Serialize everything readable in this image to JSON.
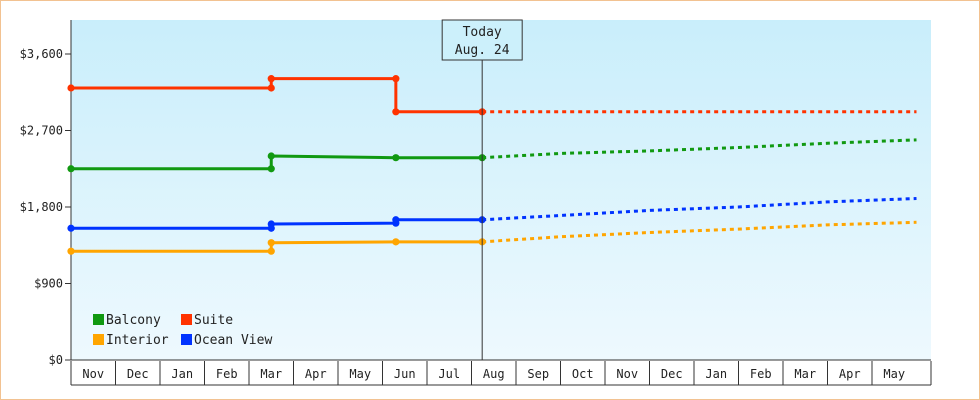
{
  "chart_data": {
    "type": "line",
    "title": "",
    "xlabel": "",
    "ylabel": "",
    "ylim": [
      0,
      4000
    ],
    "y_ticks": [
      {
        "value": 0,
        "label": "$0"
      },
      {
        "value": 900,
        "label": "$900"
      },
      {
        "value": 1800,
        "label": "$1,800"
      },
      {
        "value": 2700,
        "label": "$2,700"
      },
      {
        "value": 3600,
        "label": "$3,600"
      }
    ],
    "x_months": [
      "Nov",
      "Dec",
      "Jan",
      "Feb",
      "Mar",
      "Apr",
      "May",
      "Jun",
      "Jul",
      "Aug",
      "Sep",
      "Oct",
      "Nov",
      "Dec",
      "Jan",
      "Feb",
      "Mar",
      "Apr",
      "May"
    ],
    "today_marker": {
      "line1": "Today",
      "line2": "Aug. 24",
      "x": 9.24
    },
    "legend": {
      "placement": "bottom-left"
    },
    "grid": false,
    "background_gradient": [
      "#c9eefb",
      "#eef9fe"
    ],
    "series": [
      {
        "name": "Balcony",
        "color": "#119911",
        "history": [
          [
            0,
            2250
          ],
          [
            4.5,
            2250
          ],
          [
            4.5,
            2400
          ],
          [
            7.3,
            2380
          ],
          [
            9.24,
            2380
          ]
        ],
        "forecast": [
          [
            9.24,
            2380
          ],
          [
            11,
            2430
          ],
          [
            13,
            2460
          ],
          [
            15,
            2500
          ],
          [
            17,
            2550
          ],
          [
            19.0,
            2590
          ]
        ]
      },
      {
        "name": "Suite",
        "color": "#ff3300",
        "history": [
          [
            0,
            3200
          ],
          [
            4.5,
            3200
          ],
          [
            4.5,
            3310
          ],
          [
            7.3,
            3310
          ],
          [
            7.3,
            2920
          ],
          [
            9.24,
            2920
          ]
        ],
        "forecast": [
          [
            9.24,
            2920
          ],
          [
            19.0,
            2920
          ]
        ]
      },
      {
        "name": "Interior",
        "color": "#ffa500",
        "history": [
          [
            0,
            1280
          ],
          [
            4.5,
            1280
          ],
          [
            4.5,
            1380
          ],
          [
            7.3,
            1390
          ],
          [
            9.24,
            1390
          ]
        ],
        "forecast": [
          [
            9.24,
            1390
          ],
          [
            11,
            1450
          ],
          [
            13,
            1500
          ],
          [
            15,
            1540
          ],
          [
            17,
            1590
          ],
          [
            19.0,
            1620
          ]
        ]
      },
      {
        "name": "Ocean View",
        "color": "#0033ff",
        "history": [
          [
            0,
            1550
          ],
          [
            4.5,
            1550
          ],
          [
            4.5,
            1600
          ],
          [
            7.3,
            1610
          ],
          [
            7.3,
            1650
          ],
          [
            9.24,
            1650
          ]
        ],
        "forecast": [
          [
            9.24,
            1650
          ],
          [
            11,
            1700
          ],
          [
            13,
            1760
          ],
          [
            15,
            1800
          ],
          [
            17,
            1860
          ],
          [
            19.0,
            1900
          ]
        ]
      }
    ],
    "legend_order": [
      "Balcony",
      "Suite",
      "Interior",
      "Ocean View"
    ]
  }
}
